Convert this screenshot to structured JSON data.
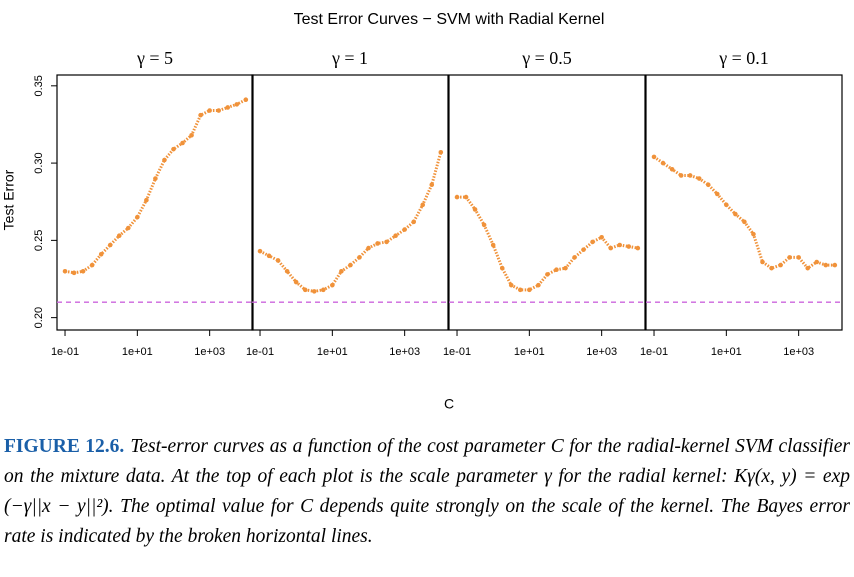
{
  "figure": {
    "title": "Test Error Curves − SVM with Radial Kernel",
    "ylabel": "Test Error",
    "xlabel": "C"
  },
  "chart_data": [
    {
      "type": "scatter",
      "title": "γ = 5",
      "log_x": true,
      "color": "#f0923a",
      "x": [
        0.1,
        0.178,
        0.316,
        0.562,
        1,
        1.78,
        3.16,
        5.62,
        10,
        17.8,
        31.6,
        56.2,
        100,
        178,
        316,
        562,
        1000,
        1780,
        3160,
        5620,
        10000
      ],
      "values": [
        0.23,
        0.229,
        0.23,
        0.234,
        0.241,
        0.247,
        0.253,
        0.258,
        0.265,
        0.276,
        0.29,
        0.302,
        0.309,
        0.313,
        0.318,
        0.331,
        0.334,
        0.334,
        0.336,
        0.338,
        0.341
      ],
      "xlim": [
        0.06,
        15800
      ],
      "ylim": [
        0.192,
        0.357
      ],
      "xticks": [
        {
          "value": 0.1,
          "label": "1e-01"
        },
        {
          "value": 10,
          "label": "1e+01"
        },
        {
          "value": 1000,
          "label": "1e+03"
        }
      ],
      "yticks": [
        {
          "value": 0.2,
          "label": "0.20"
        },
        {
          "value": 0.25,
          "label": "0.25"
        },
        {
          "value": 0.3,
          "label": "0.30"
        },
        {
          "value": 0.35,
          "label": "0.35"
        }
      ],
      "bayes_error": 0.21,
      "bayes_color": "#cc66dd"
    },
    {
      "type": "scatter",
      "title": "γ = 1",
      "log_x": true,
      "color": "#f0923a",
      "x": [
        0.1,
        0.178,
        0.316,
        0.562,
        1,
        1.78,
        3.16,
        5.62,
        10,
        17.8,
        31.6,
        56.2,
        100,
        178,
        316,
        562,
        1000,
        1780,
        3160,
        5620,
        10000
      ],
      "values": [
        0.243,
        0.24,
        0.237,
        0.23,
        0.223,
        0.218,
        0.217,
        0.218,
        0.221,
        0.23,
        0.234,
        0.239,
        0.245,
        0.248,
        0.249,
        0.253,
        0.257,
        0.262,
        0.273,
        0.286,
        0.307
      ],
      "xlim": [
        0.06,
        15800
      ],
      "ylim": [
        0.192,
        0.357
      ],
      "xticks": [
        {
          "value": 0.1,
          "label": "1e-01"
        },
        {
          "value": 10,
          "label": "1e+01"
        },
        {
          "value": 1000,
          "label": "1e+03"
        }
      ],
      "bayes_error": 0.21,
      "bayes_color": "#cc66dd"
    },
    {
      "type": "scatter",
      "title": "γ = 0.5",
      "log_x": true,
      "color": "#f0923a",
      "x": [
        0.1,
        0.178,
        0.316,
        0.562,
        1,
        1.78,
        3.16,
        5.62,
        10,
        17.8,
        31.6,
        56.2,
        100,
        178,
        316,
        562,
        1000,
        1780,
        3160,
        5620,
        10000
      ],
      "values": [
        0.278,
        0.278,
        0.27,
        0.26,
        0.247,
        0.232,
        0.221,
        0.218,
        0.218,
        0.221,
        0.228,
        0.231,
        0.232,
        0.239,
        0.244,
        0.249,
        0.252,
        0.245,
        0.247,
        0.246,
        0.245
      ],
      "xlim": [
        0.06,
        15800
      ],
      "ylim": [
        0.192,
        0.357
      ],
      "xticks": [
        {
          "value": 0.1,
          "label": "1e-01"
        },
        {
          "value": 10,
          "label": "1e+01"
        },
        {
          "value": 1000,
          "label": "1e+03"
        }
      ],
      "bayes_error": 0.21,
      "bayes_color": "#cc66dd"
    },
    {
      "type": "scatter",
      "title": "γ = 0.1",
      "log_x": true,
      "color": "#f0923a",
      "x": [
        0.1,
        0.178,
        0.316,
        0.562,
        1,
        1.78,
        3.16,
        5.62,
        10,
        17.8,
        31.6,
        56.2,
        100,
        178,
        316,
        562,
        1000,
        1780,
        3160,
        5620,
        10000
      ],
      "values": [
        0.304,
        0.3,
        0.296,
        0.292,
        0.292,
        0.29,
        0.286,
        0.28,
        0.273,
        0.267,
        0.262,
        0.254,
        0.236,
        0.232,
        0.234,
        0.239,
        0.239,
        0.232,
        0.236,
        0.234,
        0.234
      ],
      "xlim": [
        0.06,
        15800
      ],
      "ylim": [
        0.192,
        0.357
      ],
      "xticks": [
        {
          "value": 0.1,
          "label": "1e-01"
        },
        {
          "value": 10,
          "label": "1e+01"
        },
        {
          "value": 1000,
          "label": "1e+03"
        }
      ],
      "bayes_error": 0.21,
      "bayes_color": "#cc66dd"
    }
  ],
  "caption": {
    "label": "FIGURE 12.6.",
    "text": "Test-error curves as a function of the cost parameter C for the radial-kernel SVM classifier on the mixture data. At the top of each plot is the scale parameter γ for the radial kernel: Kγ(x, y) = exp (−γ||x − y||²). The optimal value for C depends quite strongly on the scale of the kernel. The Bayes error rate is indicated by the broken horizontal lines."
  }
}
